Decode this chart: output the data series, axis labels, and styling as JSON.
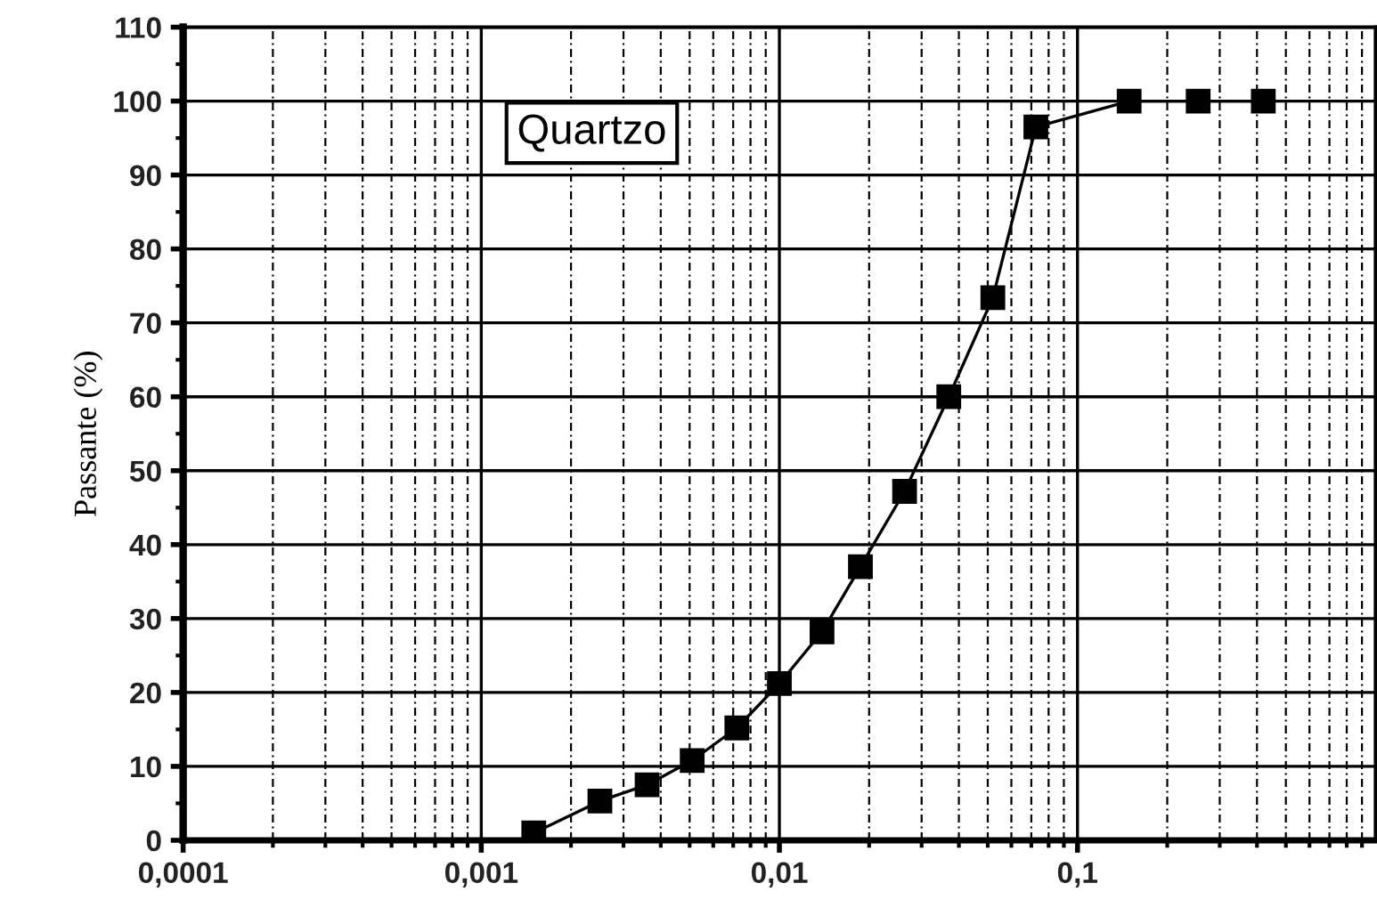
{
  "chart_data": {
    "type": "line",
    "ylabel": "Passante (%)",
    "annotations": [
      "Quartzo"
    ],
    "x": [
      0.0015,
      0.0025,
      0.0036,
      0.0051,
      0.0072,
      0.01,
      0.0139,
      0.0187,
      0.0263,
      0.037,
      0.052,
      0.0725,
      0.149,
      0.254,
      0.42
    ],
    "series": [
      {
        "color": "#000000",
        "values": [
          1,
          5.3,
          7.5,
          10.8,
          15.2,
          21.2,
          28.2,
          37,
          47.2,
          60,
          73.4,
          96.5,
          100,
          100,
          100
        ]
      }
    ],
    "log": "x",
    "xlim": [
      0.0001,
      1
    ],
    "xticks": [
      {
        "value": 0.0001,
        "label": "0,0001"
      },
      {
        "value": 0.001,
        "label": "0,001"
      },
      {
        "value": 0.01,
        "label": "0,01"
      },
      {
        "value": 0.1,
        "label": "0,1"
      }
    ],
    "ylim": [
      0,
      110
    ],
    "yticks": [
      0,
      10,
      20,
      30,
      40,
      50,
      60,
      70,
      80,
      90,
      100,
      110
    ],
    "grid": true,
    "marker": "square",
    "line_style": "solid"
  }
}
